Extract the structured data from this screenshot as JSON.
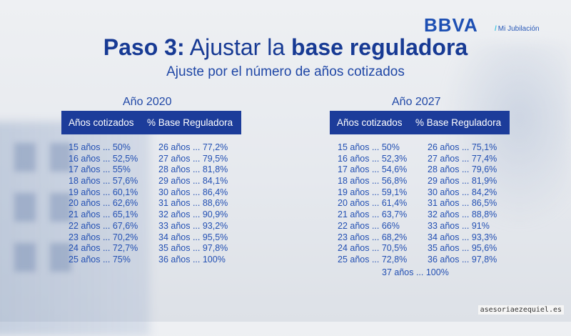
{
  "logo": {
    "brand": "BBVA",
    "sub": "Mi Jubilación"
  },
  "title": {
    "prefix": "Paso 3:",
    "middle": " Ajustar la ",
    "bold": "base reguladora"
  },
  "subtitle": "Ajuste por el número de años cotizados",
  "tables": [
    {
      "year": "Año 2020",
      "header": {
        "col1": "Años cotizados",
        "col2": "% Base Reguladora"
      },
      "left": [
        "15 años ... 50%",
        "16 años ... 52,5%",
        "17 años ... 55%",
        "18 años ... 57,6%",
        "19 años ... 60,1%",
        "20 años ... 62,6%",
        "21 años ... 65,1%",
        "22 años ... 67,6%",
        "23 años ... 70,2%",
        "24 años ... 72,7%",
        "25 años ... 75%"
      ],
      "right": [
        "26 años ... 77,2%",
        "27 años ... 79,5%",
        "28 años ... 81,8%",
        "29 años ... 84,1%",
        "30 años ... 86,4%",
        "31 años ... 88,6%",
        "32 años ... 90,9%",
        "33 años ... 93,2%",
        "34 años ... 95,5%",
        "35 años ... 97,8%",
        "36 años ... 100%"
      ]
    },
    {
      "year": "Año 2027",
      "header": {
        "col1": "Años cotizados",
        "col2": "% Base Reguladora"
      },
      "left": [
        "15 años ... 50%",
        "16 años ... 52,3%",
        "17 años ... 54,6%",
        "18 años ... 56,8%",
        "19 años ... 59,1%",
        "20 años ... 61,4%",
        "21 años ... 63,7%",
        "22 años ... 66%",
        "23 años ... 68,2%",
        "24 años ... 70,5%",
        "25 años ... 72,8%"
      ],
      "right": [
        "26 años ... 75,1%",
        "27 años ... 77,4%",
        "28 años ... 79,6%",
        "29 años ... 81,9%",
        "30 años ... 84,2%",
        "31 años ... 86,5%",
        "32 años ... 88,8%",
        "33 años ... 91%",
        "34 años ... 93,3%",
        "35 años ... 95,6%",
        "36 años ... 97,8%"
      ],
      "extra": "37 años ... 100%"
    }
  ],
  "watermark": "asesoriaezequiel.es",
  "colors": {
    "primary": "#1c3c9a",
    "text": "#2350b3",
    "accent": "#3ec3e0"
  }
}
